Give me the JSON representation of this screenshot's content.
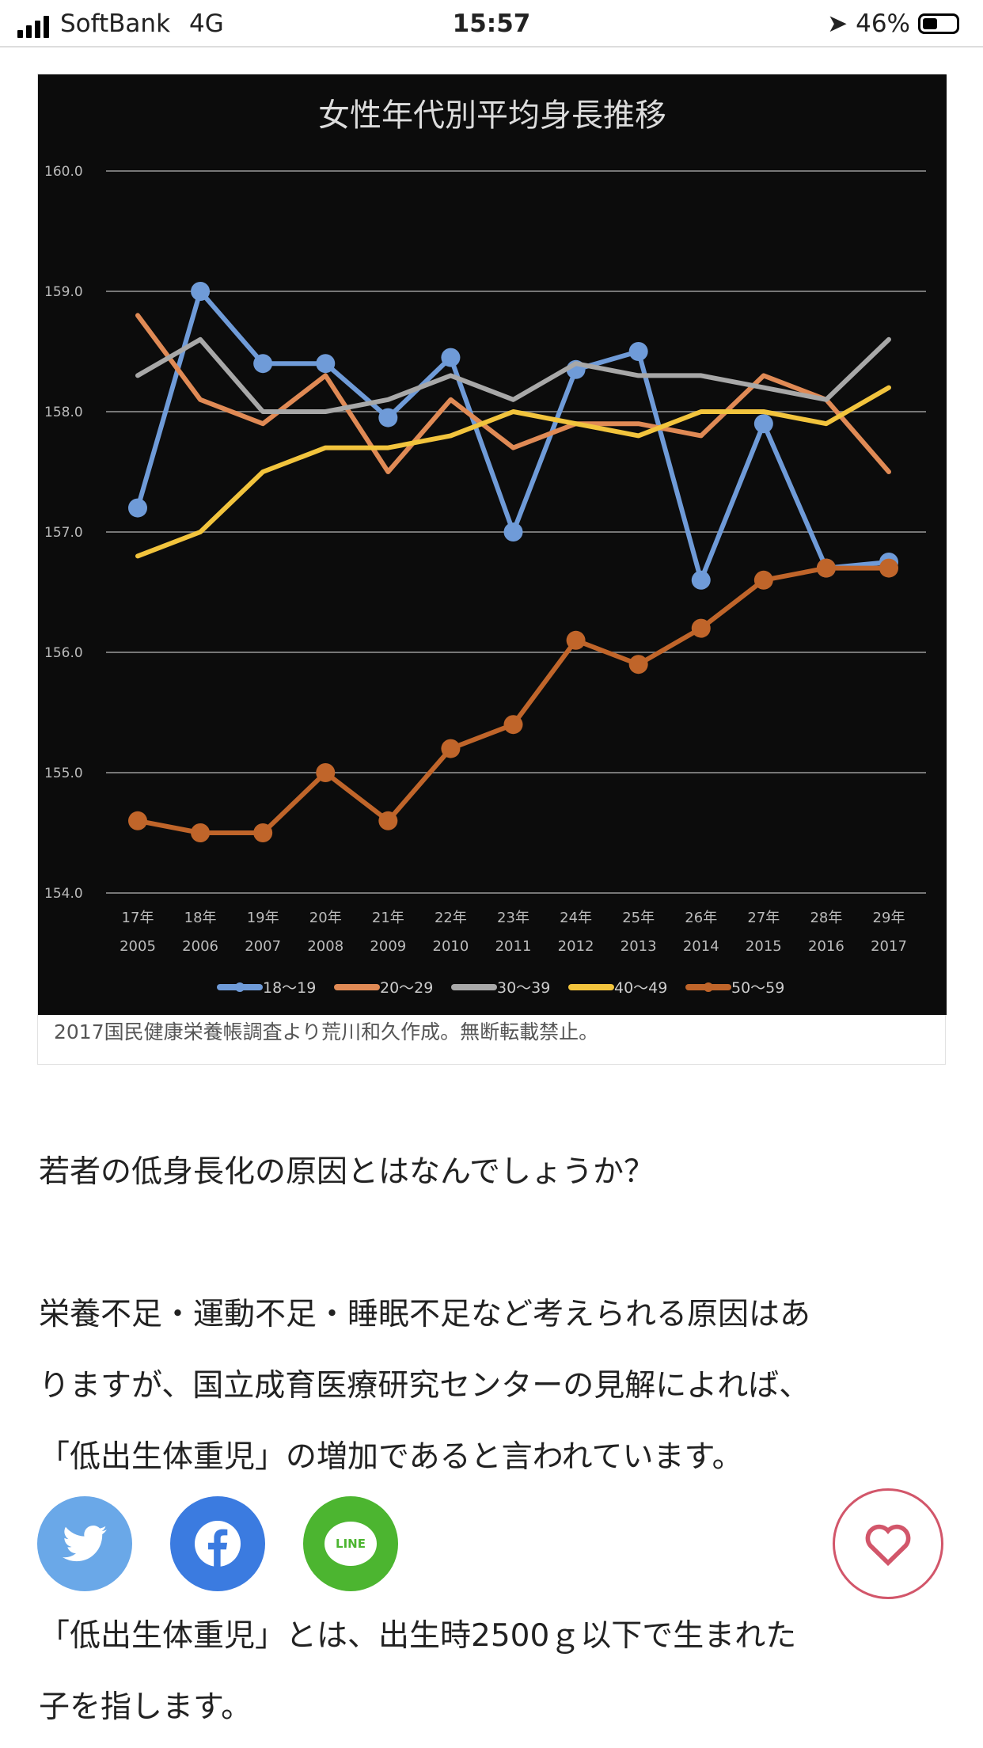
{
  "status_bar": {
    "carrier": "SoftBank",
    "network": "4G",
    "time": "15:57",
    "battery": "46%",
    "battery_level": 0.46
  },
  "figure": {
    "caption": "2017国民健康栄養帳調査より荒川和久作成。無断転載禁止。"
  },
  "chart_data": {
    "type": "line",
    "title": "女性年代別平均身長推移",
    "categories": [
      [
        "17年",
        "2005"
      ],
      [
        "18年",
        "2006"
      ],
      [
        "19年",
        "2007"
      ],
      [
        "20年",
        "2008"
      ],
      [
        "21年",
        "2009"
      ],
      [
        "22年",
        "2010"
      ],
      [
        "23年",
        "2011"
      ],
      [
        "24年",
        "2012"
      ],
      [
        "25年",
        "2013"
      ],
      [
        "26年",
        "2014"
      ],
      [
        "27年",
        "2015"
      ],
      [
        "28年",
        "2016"
      ],
      [
        "29年",
        "2017"
      ]
    ],
    "ylim": [
      154.0,
      160.0
    ],
    "yticks": [
      "154.0",
      "155.0",
      "156.0",
      "157.0",
      "158.0",
      "159.0",
      "160.0"
    ],
    "grid": true,
    "legend": "bottom",
    "series": [
      {
        "name": "18〜19",
        "color": "#6f9bd8",
        "markers": true,
        "values": [
          157.2,
          159.0,
          158.4,
          158.4,
          157.95,
          158.45,
          157.0,
          158.35,
          158.5,
          156.6,
          157.9,
          156.7,
          156.75
        ]
      },
      {
        "name": "20〜29",
        "color": "#e08a55",
        "markers": false,
        "values": [
          158.8,
          158.1,
          157.9,
          158.3,
          157.5,
          158.1,
          157.7,
          157.9,
          157.9,
          157.8,
          158.3,
          158.1,
          157.5
        ]
      },
      {
        "name": "30〜39",
        "color": "#a8a8a8",
        "markers": false,
        "values": [
          158.3,
          158.6,
          158.0,
          158.0,
          158.1,
          158.3,
          158.1,
          158.4,
          158.3,
          158.3,
          158.2,
          158.1,
          158.6
        ]
      },
      {
        "name": "40〜49",
        "color": "#f2c43d",
        "markers": false,
        "values": [
          156.8,
          157.0,
          157.5,
          157.7,
          157.7,
          157.8,
          158.0,
          157.9,
          157.8,
          158.0,
          158.0,
          157.9,
          158.2
        ]
      },
      {
        "name": "50〜59",
        "color": "#c0652a",
        "markers": true,
        "values": [
          154.6,
          154.5,
          154.5,
          155.0,
          154.6,
          155.2,
          155.4,
          156.1,
          155.9,
          156.2,
          156.6,
          156.7,
          156.7
        ]
      }
    ]
  },
  "article": {
    "p1": "若者の低身長化の原因とはなんでしょうか？",
    "p2_lines": [
      "栄養不足・運動不足・睡眠不足など考えられる原因はあ",
      "りますが、国立成育医療研究センターの見解によれば、",
      "「低出生体重児」の増加であると言われています。"
    ],
    "p3_lines": [
      "「低出生体重児」とは、出生時2500ｇ以下で生まれた",
      "子を指します。"
    ]
  },
  "share": {
    "twitter_color": "#6aa8e8",
    "facebook_color": "#3b7be0",
    "line_color": "#4cb530",
    "line_label": "LINE",
    "heart_color": "#d2566a"
  }
}
